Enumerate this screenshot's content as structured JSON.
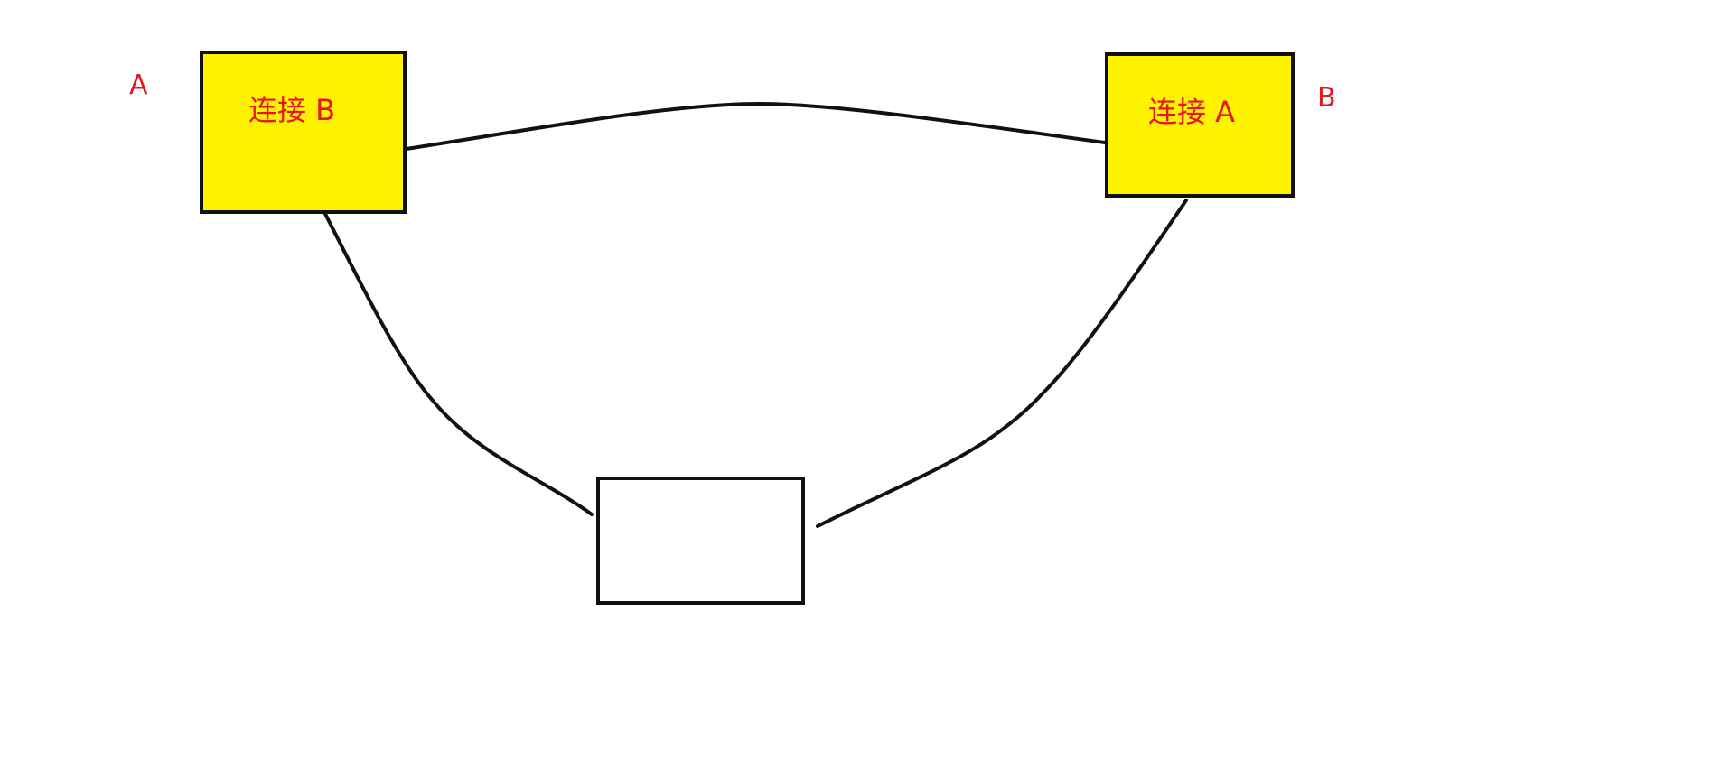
{
  "colors": {
    "label": "#e8151c",
    "filled_box": "#fff200",
    "empty_box": "#ffffff",
    "line": "#111111"
  },
  "nodes": {
    "left": {
      "label": "连接 B",
      "fill": "#fff200"
    },
    "right": {
      "label": "连接 A",
      "fill": "#fff200"
    },
    "bottom": {
      "label": "",
      "fill": "#ffffff"
    }
  },
  "side_labels": {
    "left": "A",
    "right": "B"
  }
}
